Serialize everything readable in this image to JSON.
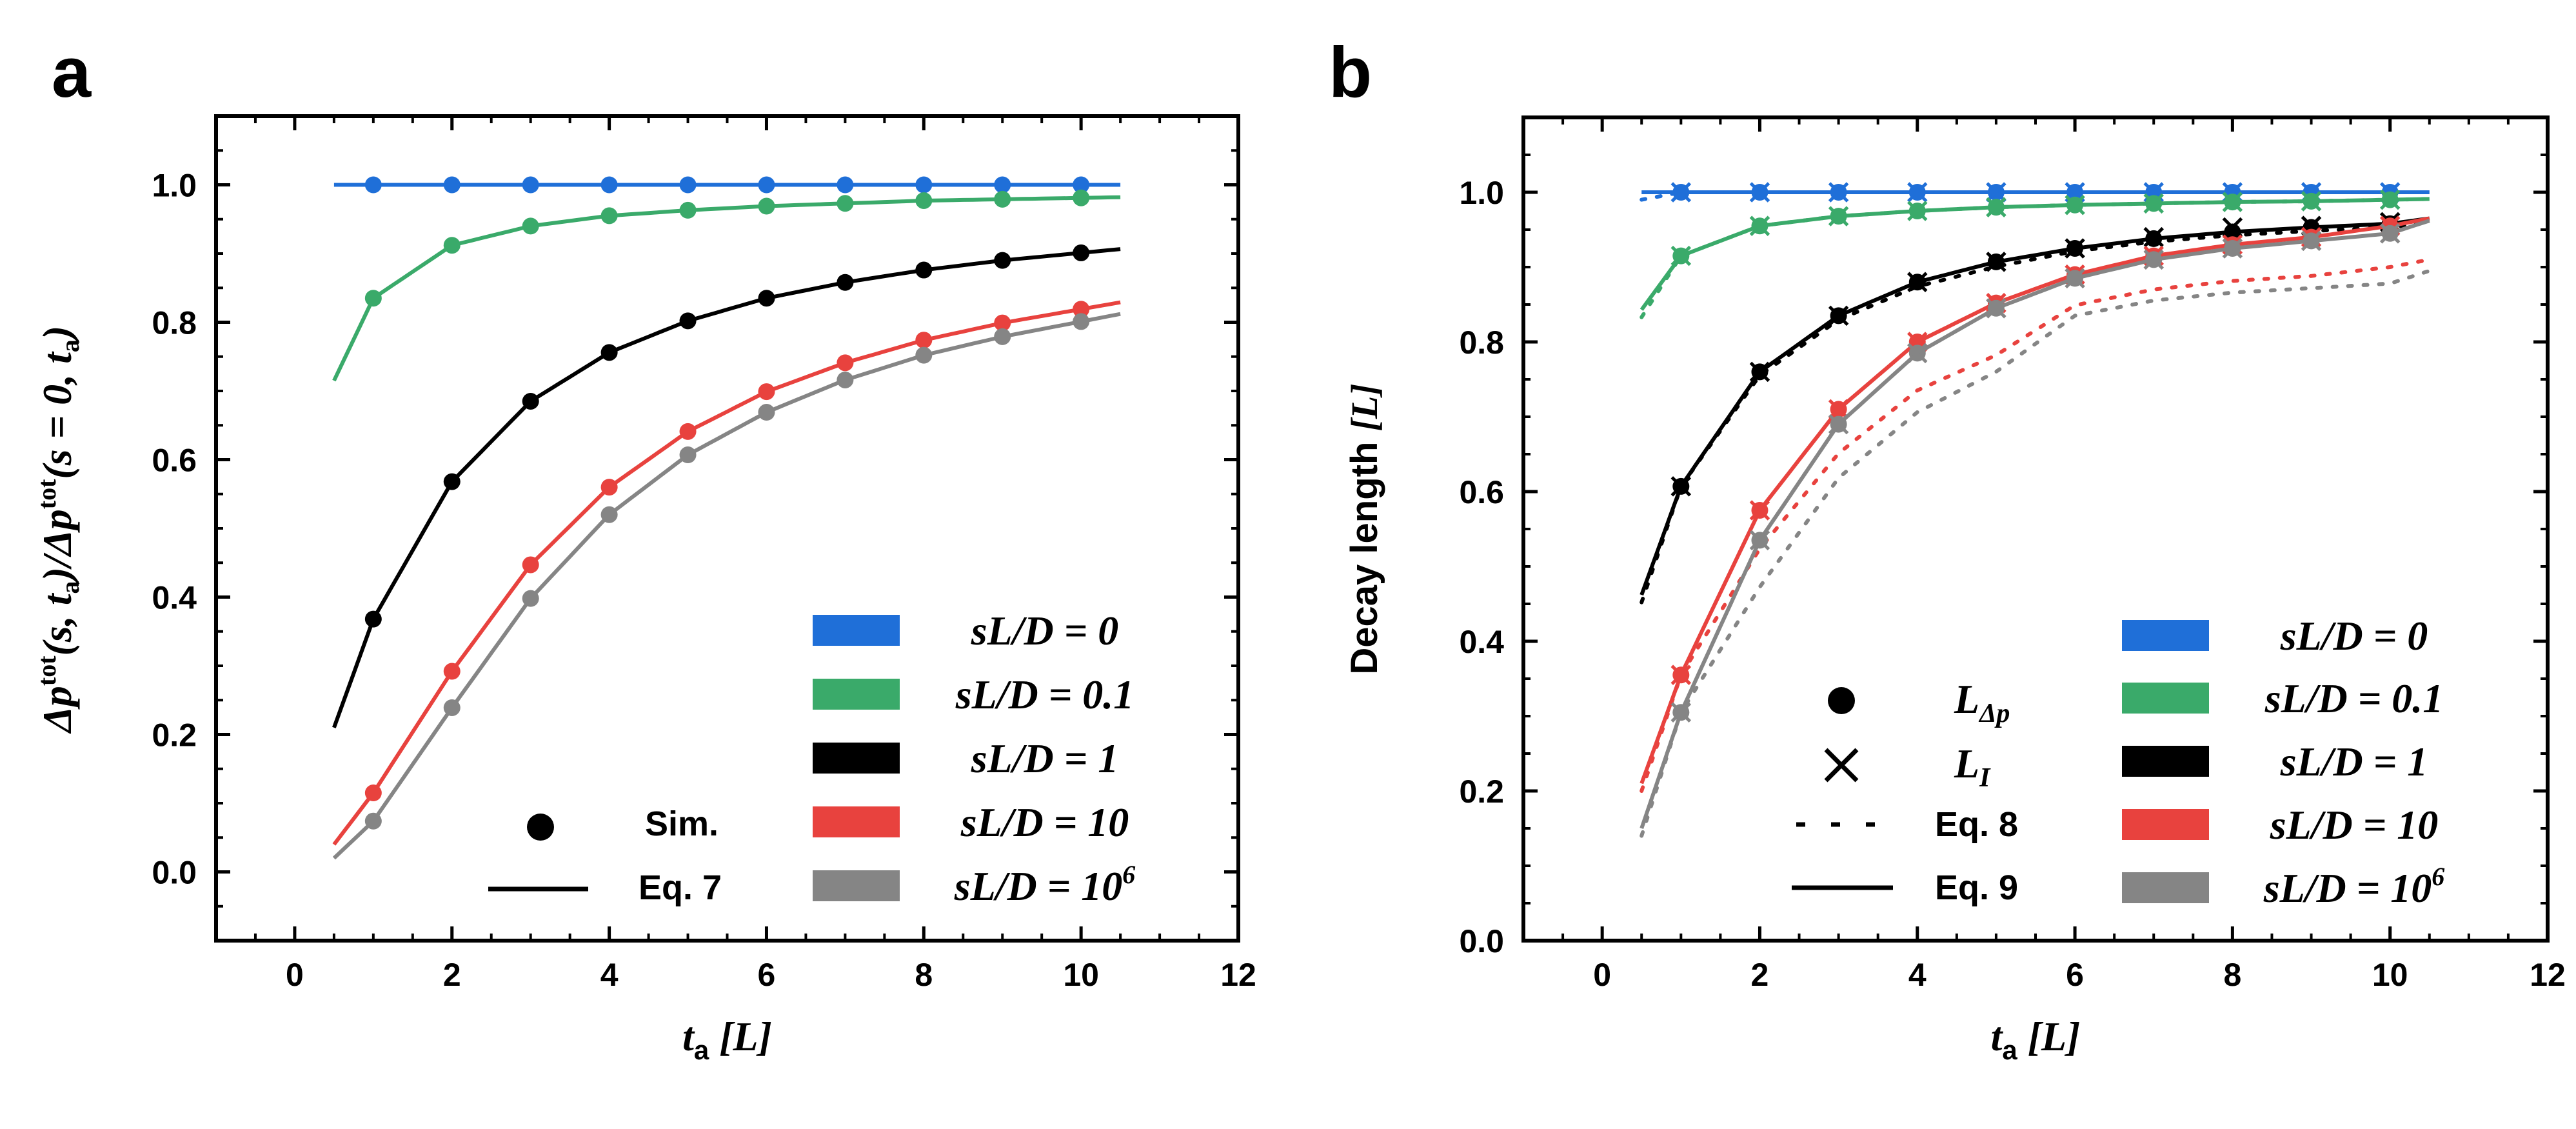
{
  "figure": {
    "panel_a_label": "a",
    "panel_b_label": "b",
    "colors": {
      "s0": "#1f6fd8",
      "s01": "#3aaa6a",
      "s1": "#000000",
      "s10": "#e8423e",
      "s1e6": "#858585"
    }
  },
  "chart_data": [
    {
      "type": "line",
      "panel": "a",
      "title": "",
      "xlabel_main": "t",
      "xlabel_sub": "a",
      "xlabel_unit": "[L]",
      "ylabel": "Δp^tot(s, t_a)/Δp^tot(s = 0, t_a)",
      "ylabel_parts": {
        "num": "Δp",
        "sup1": "tot",
        "mid1": "(s, t",
        "sub1": "a",
        "mid2": ")/Δp",
        "sup2": "tot",
        "mid3": "(s = 0, t",
        "sub2": "a",
        "end": ")"
      },
      "xlim": [
        -1.0,
        12.0
      ],
      "ylim": [
        -0.1,
        1.1
      ],
      "xticks": [
        "0",
        "2",
        "4",
        "6",
        "8",
        "10",
        "12"
      ],
      "yticks": [
        "0.0",
        "0.2",
        "0.4",
        "0.6",
        "0.8",
        "1.0"
      ],
      "x": [
        1,
        2,
        3,
        4,
        5,
        6,
        7,
        8,
        9,
        10
      ],
      "line_x_range": [
        0.5,
        10.5
      ],
      "series": [
        {
          "name": "sL/D = 0",
          "color_key": "s0",
          "sim": [
            1.0,
            1.0,
            1.0,
            1.0,
            1.0,
            1.0,
            1.0,
            1.0,
            1.0,
            1.0
          ],
          "line_start": 1.0
        },
        {
          "name": "sL/D = 0.1",
          "color_key": "s01",
          "sim": [
            0.835,
            0.912,
            0.94,
            0.955,
            0.963,
            0.969,
            0.973,
            0.977,
            0.979,
            0.981
          ],
          "line_start": 0.715
        },
        {
          "name": "sL/D = 1",
          "color_key": "s1",
          "sim": [
            0.368,
            0.568,
            0.685,
            0.756,
            0.802,
            0.835,
            0.858,
            0.876,
            0.89,
            0.901
          ],
          "line_start": 0.21
        },
        {
          "name": "sL/D = 10",
          "color_key": "s10",
          "sim": [
            0.115,
            0.292,
            0.447,
            0.56,
            0.641,
            0.699,
            0.741,
            0.774,
            0.799,
            0.819
          ],
          "line_start": 0.04
        },
        {
          "name": "sL/D = 10^6",
          "color_key": "s1e6",
          "sim": [
            0.074,
            0.239,
            0.398,
            0.52,
            0.607,
            0.669,
            0.716,
            0.752,
            0.779,
            0.801
          ],
          "line_start": 0.02
        }
      ],
      "legend": {
        "markers": [
          {
            "label": "Sim.",
            "kind": "dot"
          },
          {
            "label": "Eq. 7",
            "kind": "line"
          }
        ],
        "colors": [
          {
            "base": "sL/D = ",
            "value": "0",
            "sup": "",
            "color_key": "s0"
          },
          {
            "base": "sL/D = ",
            "value": "0.1",
            "sup": "",
            "color_key": "s01"
          },
          {
            "base": "sL/D = ",
            "value": "1",
            "sup": "",
            "color_key": "s1"
          },
          {
            "base": "sL/D = ",
            "value": "10",
            "sup": "",
            "color_key": "s10"
          },
          {
            "base": "sL/D = ",
            "value": "10",
            "sup": "6",
            "color_key": "s1e6"
          }
        ]
      }
    },
    {
      "type": "line",
      "panel": "b",
      "title": "",
      "xlabel_main": "t",
      "xlabel_sub": "a",
      "xlabel_unit": "[L]",
      "ylabel": "Decay length [L]",
      "ylabel_text": "Decay length ",
      "ylabel_unit": "[L]",
      "xlim": [
        -1.0,
        12.0
      ],
      "ylim": [
        0.0,
        1.1
      ],
      "xticks": [
        "0",
        "2",
        "4",
        "6",
        "8",
        "10",
        "12"
      ],
      "yticks": [
        "0.0",
        "0.2",
        "0.4",
        "0.6",
        "0.8",
        "1.0"
      ],
      "x": [
        1,
        2,
        3,
        4,
        5,
        6,
        7,
        8,
        9,
        10
      ],
      "line_x_range": [
        0.5,
        10.5
      ],
      "series": [
        {
          "name": "sL/D = 0",
          "color_key": "s0",
          "L_dp": [
            1.0,
            1.0,
            1.0,
            1.0,
            1.0,
            1.0,
            1.0,
            1.0,
            1.0,
            1.0
          ],
          "L_I": [
            1.0,
            1.0,
            1.0,
            1.0,
            1.0,
            1.0,
            1.0,
            1.0,
            1.0,
            1.0
          ],
          "eq9_start": 1.0,
          "eq9_end": 1.0,
          "eq8_end": 1.0
        },
        {
          "name": "sL/D = 0.1",
          "color_key": "s01",
          "L_dp": [
            0.915,
            0.955,
            0.968,
            0.975,
            0.98,
            0.983,
            0.985,
            0.987,
            0.988,
            0.99
          ],
          "L_I": [
            0.915,
            0.955,
            0.968,
            0.975,
            0.98,
            0.983,
            0.985,
            0.987,
            0.988,
            0.99
          ],
          "eq9_start": 0.843,
          "eq9_end": 0.991,
          "eq8_end": 0.991
        },
        {
          "name": "sL/D = 1",
          "color_key": "s1",
          "L_dp": [
            0.607,
            0.76,
            0.835,
            0.88,
            0.907,
            0.925,
            0.938,
            0.947,
            0.953,
            0.958
          ],
          "L_I": [
            0.607,
            0.76,
            0.835,
            0.88,
            0.907,
            0.925,
            0.94,
            0.953,
            0.955,
            0.96
          ],
          "eq9_start": 0.462,
          "eq9_end": 0.965,
          "eq8_end": 0.96
        },
        {
          "name": "sL/D = 10",
          "color_key": "s10",
          "L_dp": [
            0.355,
            0.575,
            0.71,
            0.8,
            0.852,
            0.89,
            0.915,
            0.93,
            0.94,
            0.955
          ],
          "L_I": [
            0.355,
            0.575,
            0.71,
            0.8,
            0.852,
            0.89,
            0.915,
            0.93,
            0.94,
            0.955
          ],
          "eq9_start": 0.21,
          "eq9_end": 0.965,
          "eq8_end": 0.91
        },
        {
          "name": "sL/D = 10^6",
          "color_key": "s1e6",
          "L_dp": [
            0.305,
            0.535,
            0.69,
            0.785,
            0.845,
            0.885,
            0.91,
            0.925,
            0.935,
            0.945
          ],
          "L_I": [
            0.305,
            0.535,
            0.69,
            0.785,
            0.845,
            0.885,
            0.91,
            0.925,
            0.935,
            0.945
          ],
          "eq9_start": 0.15,
          "eq9_end": 0.962,
          "eq8_end": 0.895
        }
      ],
      "legend": {
        "markers": [
          {
            "main": "L",
            "sub": "Δp",
            "kind": "dot"
          },
          {
            "main": "L",
            "sub": "I",
            "kind": "cross"
          },
          {
            "label": "Eq. 8",
            "kind": "dotted"
          },
          {
            "label": "Eq. 9",
            "kind": "line"
          }
        ],
        "colors": [
          {
            "base": "sL/D = ",
            "value": "0",
            "sup": "",
            "color_key": "s0"
          },
          {
            "base": "sL/D = ",
            "value": "0.1",
            "sup": "",
            "color_key": "s01"
          },
          {
            "base": "sL/D = ",
            "value": "1",
            "sup": "",
            "color_key": "s1"
          },
          {
            "base": "sL/D = ",
            "value": "10",
            "sup": "",
            "color_key": "s10"
          },
          {
            "base": "sL/D = ",
            "value": "10",
            "sup": "6",
            "color_key": "s1e6"
          }
        ]
      }
    }
  ]
}
